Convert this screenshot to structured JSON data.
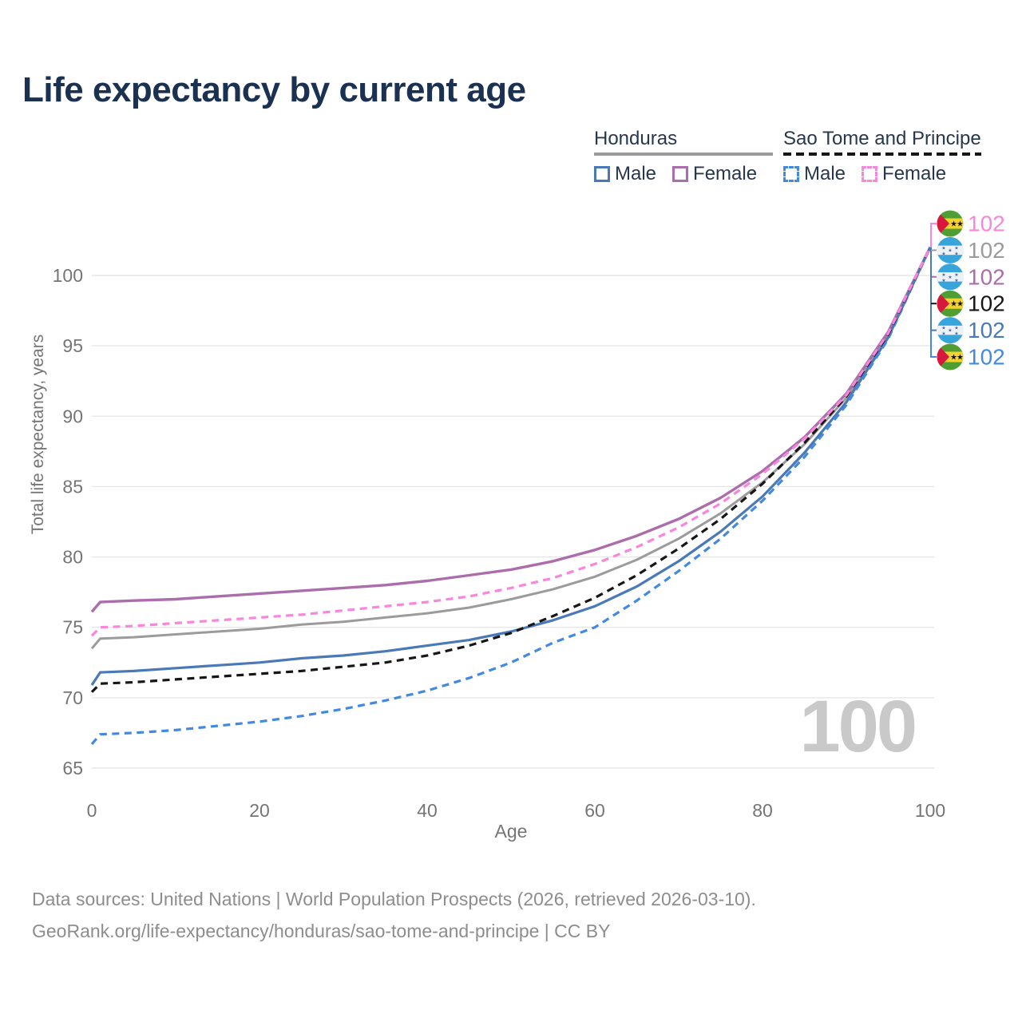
{
  "title": "Life expectancy by current age",
  "legend": {
    "groups": [
      {
        "label": "Honduras",
        "line_style": "solid",
        "underline_color": "#9b9b9b",
        "items": [
          {
            "label": "Male",
            "color": "#4a79b8"
          },
          {
            "label": "Female",
            "color": "#ab6dab"
          }
        ]
      },
      {
        "label": "Sao Tome and Principe",
        "line_style": "dashed",
        "underline_color": "#161616",
        "items": [
          {
            "label": "Male",
            "color": "#4289e2"
          },
          {
            "label": "Female",
            "color": "#fa85dc"
          }
        ]
      }
    ]
  },
  "chart_data": {
    "type": "line",
    "title": "Life expectancy by current age",
    "xlabel": "Age",
    "ylabel": "Total life expectancy, years",
    "xlim": [
      0,
      100
    ],
    "ylim": [
      63.5,
      102.5
    ],
    "x_ticks": [
      0,
      20,
      40,
      60,
      80,
      100
    ],
    "y_ticks": [
      65,
      70,
      75,
      80,
      85,
      90,
      95,
      100
    ],
    "grid": "horizontal",
    "legend_position": "top-right",
    "x": [
      0,
      1,
      5,
      10,
      15,
      20,
      25,
      30,
      35,
      40,
      45,
      50,
      55,
      60,
      65,
      70,
      75,
      80,
      85,
      90,
      95,
      100
    ],
    "series": [
      {
        "name": "Honduras Both sexes",
        "color": "#9b9b9b",
        "dashed": false,
        "width": 3.0,
        "values": [
          73.5,
          74.2,
          74.3,
          74.5,
          74.7,
          74.9,
          75.2,
          75.4,
          75.7,
          76.0,
          76.4,
          77.0,
          77.7,
          78.6,
          79.8,
          81.3,
          83.1,
          85.3,
          88.0,
          91.3,
          95.8,
          102
        ]
      },
      {
        "name": "Honduras Female",
        "color": "#ab6dab",
        "dashed": false,
        "width": 3.4,
        "values": [
          76.1,
          76.8,
          76.9,
          77.0,
          77.2,
          77.4,
          77.6,
          77.8,
          78.0,
          78.3,
          78.7,
          79.1,
          79.7,
          80.5,
          81.5,
          82.7,
          84.2,
          86.1,
          88.5,
          91.6,
          96.0,
          102
        ]
      },
      {
        "name": "Honduras Male",
        "color": "#4a79b8",
        "dashed": false,
        "width": 3.2,
        "values": [
          70.9,
          71.8,
          71.9,
          72.1,
          72.3,
          72.5,
          72.8,
          73.0,
          73.3,
          73.7,
          74.1,
          74.7,
          75.5,
          76.5,
          77.9,
          79.7,
          81.8,
          84.3,
          87.4,
          91.0,
          95.6,
          102
        ]
      },
      {
        "name": "Sao Tome and Principe Male",
        "color": "#4289e2",
        "dashed": true,
        "width": 3.2,
        "values": [
          66.7,
          67.4,
          67.5,
          67.7,
          68.0,
          68.3,
          68.7,
          69.2,
          69.8,
          70.5,
          71.4,
          72.5,
          73.9,
          75.0,
          76.9,
          79.0,
          81.3,
          84.0,
          87.1,
          90.8,
          95.5,
          102
        ]
      },
      {
        "name": "Sao Tome and Principe Both sexes",
        "color": "#161616",
        "dashed": true,
        "width": 3.2,
        "values": [
          70.4,
          71.0,
          71.1,
          71.3,
          71.5,
          71.7,
          71.9,
          72.2,
          72.5,
          73.0,
          73.7,
          74.6,
          75.8,
          77.1,
          78.7,
          80.6,
          82.7,
          85.2,
          88.1,
          91.4,
          95.8,
          102
        ]
      },
      {
        "name": "Sao Tome and Principe Female",
        "color": "#fa85dc",
        "dashed": true,
        "width": 3.2,
        "values": [
          74.4,
          75.0,
          75.1,
          75.3,
          75.5,
          75.7,
          75.9,
          76.2,
          76.5,
          76.8,
          77.2,
          77.8,
          78.5,
          79.5,
          80.7,
          82.1,
          83.8,
          85.9,
          88.4,
          91.5,
          95.9,
          102
        ]
      }
    ]
  },
  "right_labels": [
    {
      "value": "102",
      "flag": "sao-tome-and-principe",
      "series": "Sao Tome and Principe Female",
      "color": "#fa85dc"
    },
    {
      "value": "102",
      "flag": "honduras",
      "series": "Honduras Both sexes",
      "color": "#9b9b9b"
    },
    {
      "value": "102",
      "flag": "honduras",
      "series": "Honduras Female",
      "color": "#ab6dab"
    },
    {
      "value": "102",
      "flag": "sao-tome-and-principe",
      "series": "Sao Tome and Principe Both sexes",
      "color": "#161616"
    },
    {
      "value": "102",
      "flag": "honduras",
      "series": "Honduras Male",
      "color": "#4a79b8"
    },
    {
      "value": "102",
      "flag": "sao-tome-and-principe",
      "series": "Sao Tome and Principe Male",
      "color": "#4289e2"
    }
  ],
  "watermark": "100",
  "footer": {
    "line1": "Data sources: United Nations | World Population Prospects (2026, retrieved 2026-03-10).",
    "line2": "GeoRank.org/life-expectancy/honduras/sao-tome-and-principe | CC BY"
  },
  "flag_colors": {
    "honduras_blue": "#38a4dc",
    "honduras_white": "#eef1f4",
    "honduras_star": "#3e6fb0",
    "stp_green": "#4f9e33",
    "stp_yellow": "#f4d32e",
    "stp_red": "#d8173f",
    "stp_star": "#161616"
  }
}
